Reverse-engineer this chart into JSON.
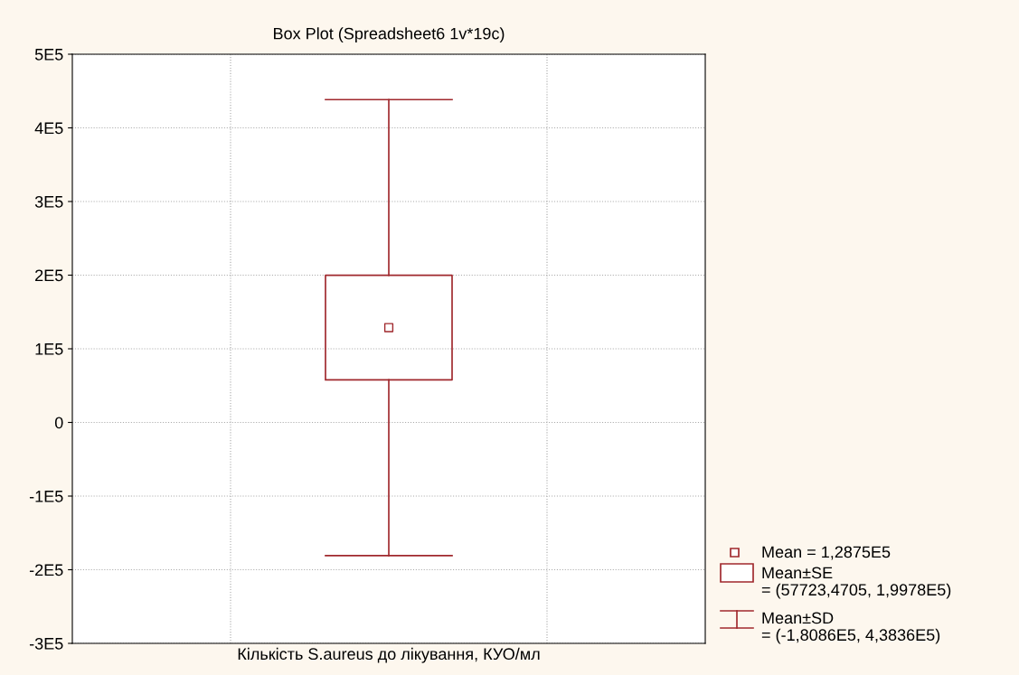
{
  "chart_data": {
    "type": "box",
    "title": "Box Plot (Spreadsheet6 1v*19c)",
    "categories": [
      "Кількість S.aureus до лікування, КУО/мл"
    ],
    "boxes": [
      {
        "low": -180860,
        "q1": 57723.4705,
        "median": 128750,
        "q3": 199780,
        "high": 438360
      }
    ],
    "color": "#a0282d",
    "ylim": [
      -300000,
      500000
    ],
    "yticks": [
      {
        "value": -300000,
        "label": "-3E5"
      },
      {
        "value": -200000,
        "label": "-2E5"
      },
      {
        "value": -100000,
        "label": "-1E5"
      },
      0,
      {
        "value": 100000,
        "label": "1E5"
      },
      {
        "value": 200000,
        "label": "2E5"
      },
      {
        "value": 300000,
        "label": "3E5"
      },
      {
        "value": 400000,
        "label": "4E5"
      },
      {
        "value": 500000,
        "label": "5E5"
      }
    ],
    "grid": true,
    "annotations": [
      "Mean = 1,2875E5",
      "Mean±SE\n= (57723,4705, 1,9978E5)",
      "Mean±SD\n= (-1,8086E5, 4,3836E5)"
    ]
  }
}
